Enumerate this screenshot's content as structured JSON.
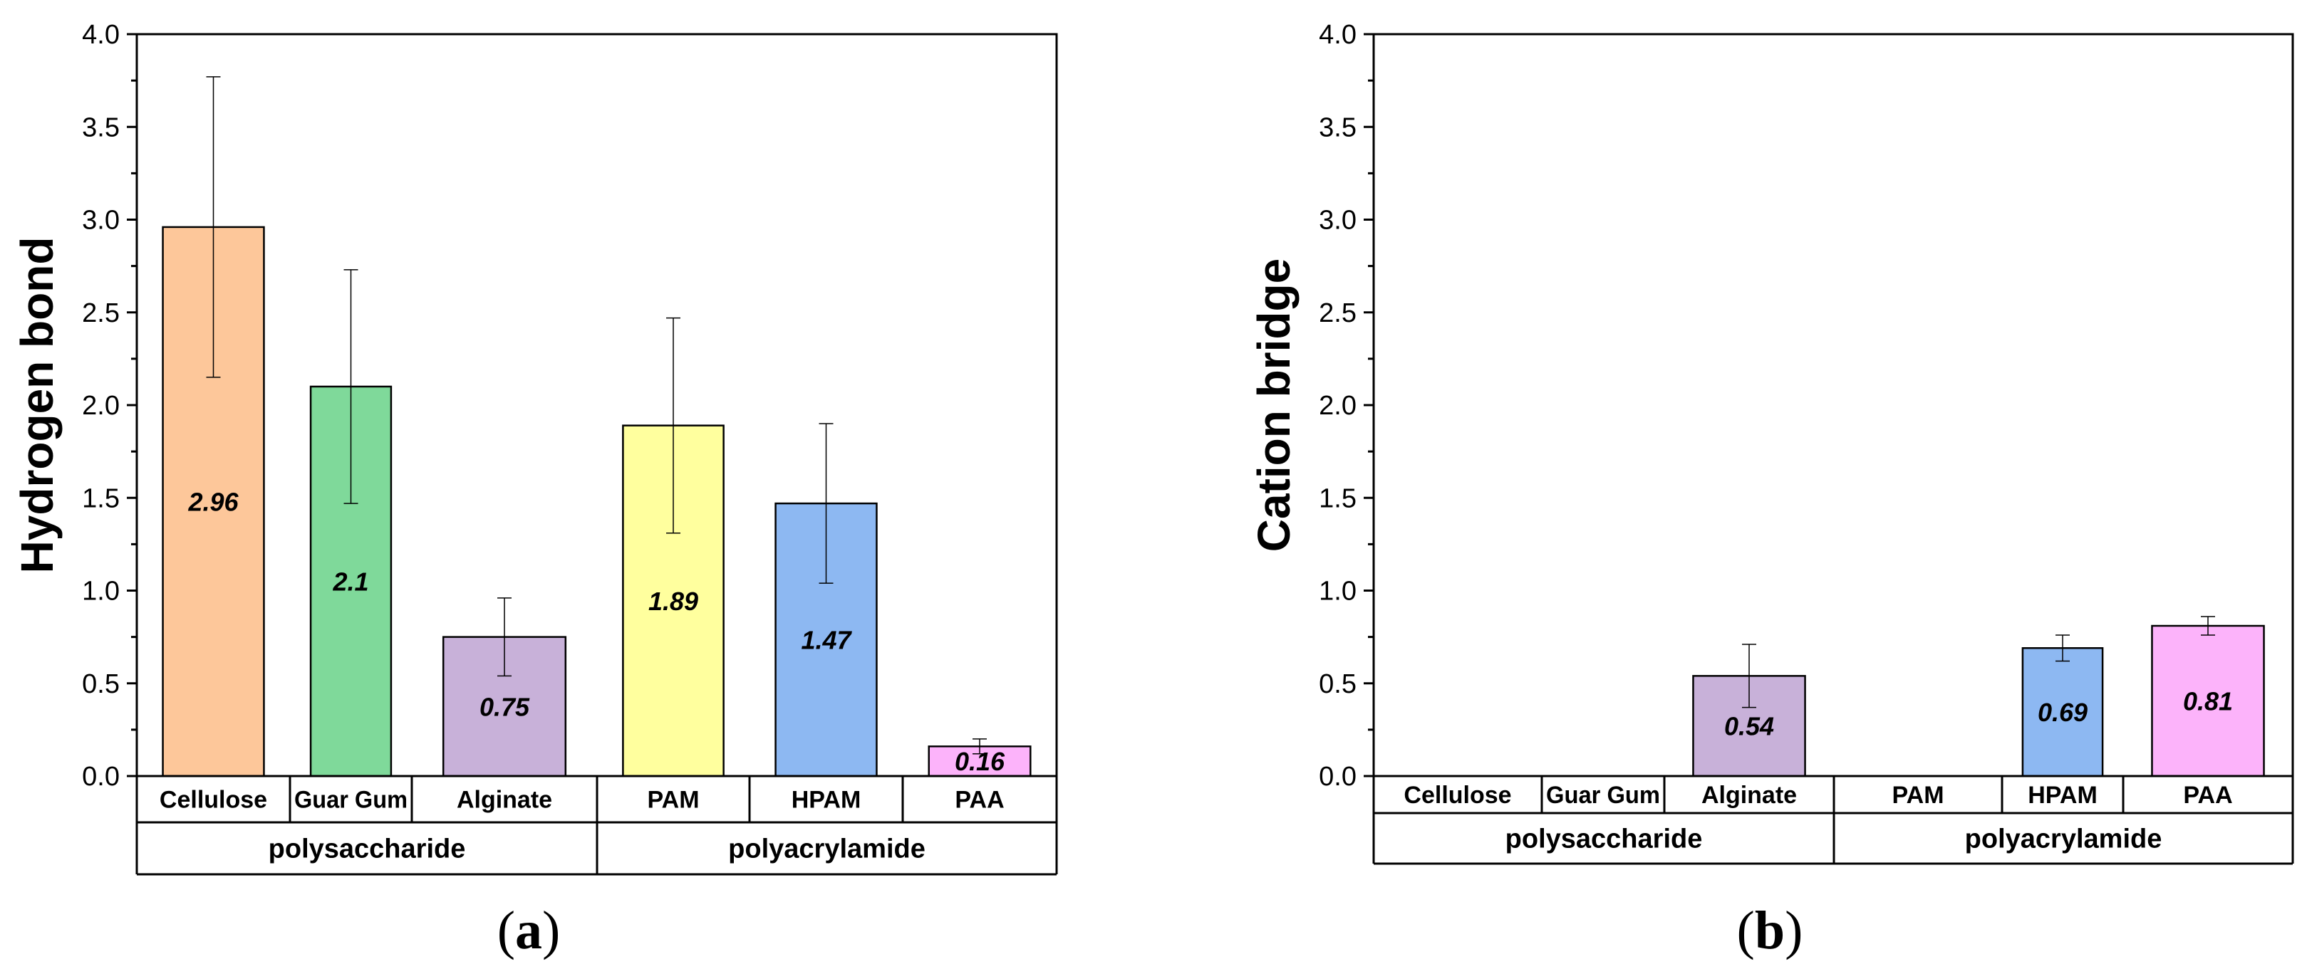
{
  "chart_data": [
    {
      "type": "bar",
      "panel_label": "a",
      "ylabel": "Hydrogen bond",
      "ylim": [
        0,
        4.0
      ],
      "yticks": [
        "0.0",
        "0.5",
        "1.0",
        "1.5",
        "2.0",
        "2.5",
        "3.0",
        "3.5",
        "4.0"
      ],
      "categories": [
        "Cellulose",
        "Guar Gum",
        "Alginate",
        "PAM",
        "HPAM",
        "PAA"
      ],
      "groups": [
        {
          "label": "polysaccharide",
          "span": 3
        },
        {
          "label": "polyacrylamide",
          "span": 3
        }
      ],
      "values": [
        2.96,
        2.1,
        0.75,
        1.89,
        1.47,
        0.16
      ],
      "value_labels": [
        "2.96",
        "2.1",
        "0.75",
        "1.89",
        "1.47",
        "0.16"
      ],
      "errors": [
        0.81,
        0.63,
        0.21,
        0.58,
        0.43,
        0.04
      ],
      "colors": [
        "#FDC79A",
        "#7FD99A",
        "#C8B1D9",
        "#FFFF9E",
        "#8DB8F2",
        "#FCB3FA"
      ]
    },
    {
      "type": "bar",
      "panel_label": "b",
      "ylabel": "Cation bridge",
      "ylim": [
        0,
        4.0
      ],
      "yticks": [
        "0.0",
        "0.5",
        "1.0",
        "1.5",
        "2.0",
        "2.5",
        "3.0",
        "3.5",
        "4.0"
      ],
      "categories": [
        "Cellulose",
        "Guar Gum",
        "Alginate",
        "PAM",
        "HPAM",
        "PAA"
      ],
      "groups": [
        {
          "label": "polysaccharide",
          "span": 3
        },
        {
          "label": "polyacrylamide",
          "span": 3
        }
      ],
      "values": [
        0,
        0,
        0.54,
        0,
        0.69,
        0.81
      ],
      "value_labels": [
        "",
        "",
        "0.54",
        "",
        "0.69",
        "0.81"
      ],
      "errors": [
        0,
        0,
        0.17,
        0,
        0.07,
        0.05
      ],
      "colors": [
        "#FDC79A",
        "#7FD99A",
        "#C8B1D9",
        "#FFFF9E",
        "#8DB8F2",
        "#FCB3FA"
      ]
    }
  ]
}
